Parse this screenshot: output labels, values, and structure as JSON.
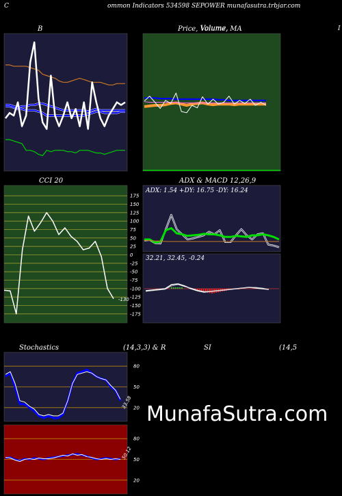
{
  "header": {
    "left_letter": "C",
    "text": "ommon  Indicators 534598  SEPOWER munafasutra.trbjar.com",
    "right_letter": "I"
  },
  "titles": {
    "b": "B",
    "price": "Price,  Volume,  MA",
    "price_overlap": "Volume,",
    "cci": "CCI 20",
    "adx_macd": "ADX  & MACD 12,26,9",
    "adx_values": "ADX: 1.54   +DY: 16.75 -DY: 16.24",
    "macd_values": "32.21,  32.45,  -0.24",
    "stochastics": "Stochastics",
    "stoch_params": "(14,3,3) & R",
    "si": "SI",
    "rsi_params": "(14,5"
  },
  "watermark": "MunafaSutra.com",
  "colors": {
    "navy_panel": "#1c1c3a",
    "green_panel": "#1f4a1f",
    "red_panel": "#8b0000",
    "green_line": "#00cc00",
    "blue_line": "#0000ff",
    "orange_line": "#cc7722",
    "grid_orange": "#b8860b",
    "grid_olive": "#9a9a30"
  },
  "chart_data": [
    {
      "type": "line",
      "name": "bollinger",
      "series": [
        {
          "values": [
            22,
            22,
            21,
            20,
            19,
            14,
            14,
            13,
            11,
            10,
            14,
            13,
            14,
            14,
            14,
            13,
            13,
            12,
            14,
            14,
            14,
            13,
            12,
            12,
            11,
            12,
            13,
            14,
            14,
            14
          ]
        },
        {
          "values": [
            47,
            47,
            46,
            45,
            45,
            44,
            44,
            44,
            43,
            42,
            40,
            40,
            40,
            40,
            40,
            40,
            40,
            40,
            40,
            40,
            41,
            42,
            43,
            43,
            42,
            42,
            42,
            42,
            43,
            43
          ]
        },
        {
          "values": [
            48,
            48,
            47,
            46,
            47,
            47,
            48,
            48,
            49,
            49,
            48,
            47,
            46,
            45,
            44,
            44,
            44,
            44,
            44,
            44,
            43,
            44,
            45,
            44,
            44,
            44,
            44,
            44,
            44,
            44
          ]
        },
        {
          "values": [
            53,
            53,
            53,
            53,
            53,
            52,
            52,
            52,
            52,
            51,
            51,
            50,
            49,
            49,
            48,
            48,
            48,
            48,
            48,
            47,
            48,
            48,
            48,
            48,
            47,
            47,
            47,
            47,
            47,
            48
          ]
        },
        {
          "values": [
            78,
            78,
            77,
            77,
            77,
            77,
            76,
            75,
            74,
            71,
            70,
            69,
            68,
            66,
            65,
            65,
            66,
            67,
            68,
            67,
            66,
            65,
            65,
            65,
            64,
            63,
            63,
            64,
            64,
            64
          ]
        },
        {
          "values": [
            62,
            58,
            60,
            50,
            68,
            60,
            20,
            5,
            47,
            65,
            70,
            30,
            60,
            68,
            60,
            50,
            62,
            55,
            68,
            50,
            70,
            35,
            50,
            62,
            68,
            60,
            55,
            50,
            52,
            50
          ]
        }
      ]
    },
    {
      "type": "line",
      "name": "price_ma",
      "series": [
        {
          "values": [
            38,
            39,
            40,
            40,
            41,
            43,
            44,
            42,
            40,
            42,
            43,
            44,
            42,
            41,
            42,
            42,
            42,
            41,
            42,
            42,
            42,
            42,
            42,
            42
          ]
        },
        {
          "values": [
            46,
            45,
            45,
            45,
            45,
            45,
            45,
            44,
            44,
            44,
            44,
            44,
            44,
            44,
            44,
            44,
            44,
            44,
            44,
            44,
            44,
            44,
            44,
            44
          ]
        },
        {
          "values": [
            52,
            52,
            52,
            51,
            51,
            51,
            50,
            50,
            50,
            50,
            50,
            50,
            50,
            50,
            49,
            49,
            48,
            48,
            48,
            48,
            48,
            48,
            48,
            48
          ]
        },
        {
          "values": [
            47,
            55,
            45,
            35,
            48,
            43,
            60,
            30,
            28,
            40,
            36,
            54,
            42,
            50,
            42,
            45,
            55,
            42,
            48,
            43,
            50,
            40,
            45,
            40
          ]
        }
      ]
    },
    {
      "type": "line",
      "name": "cci",
      "yticks": [
        175,
        150,
        125,
        100,
        75,
        50,
        25,
        0,
        -25,
        -50,
        -75,
        -100,
        -125,
        -150,
        -175
      ],
      "last_label": "-130",
      "values": [
        -105,
        -107,
        -175,
        15,
        115,
        70,
        95,
        125,
        100,
        60,
        80,
        55,
        40,
        15,
        20,
        40,
        -5,
        -100,
        -130
      ]
    },
    {
      "type": "line",
      "name": "adx",
      "series": [
        {
          "values": [
            20,
            20,
            14,
            16,
            38,
            42,
            32,
            30,
            27,
            28,
            29,
            31,
            30,
            30,
            28,
            25,
            25,
            27,
            26,
            25,
            28,
            28,
            30,
            28,
            25,
            20
          ]
        },
        {
          "values": [
            18,
            19,
            13,
            12,
            40,
            68,
            40,
            30,
            20,
            22,
            25,
            28,
            35,
            30,
            38,
            15,
            15,
            28,
            40,
            28,
            20,
            30,
            32,
            10,
            8,
            5
          ]
        },
        {
          "values": [
            38,
            38,
            36,
            35,
            42,
            46,
            44,
            42,
            40,
            38,
            38,
            36,
            35,
            34,
            34,
            33,
            32,
            33,
            32,
            31,
            30,
            29,
            28,
            27,
            27,
            26
          ]
        },
        {
          "values": [
            18,
            18,
            17,
            17,
            16,
            16,
            16,
            16,
            16,
            16,
            16,
            16,
            16,
            16,
            16,
            16,
            16,
            16,
            16,
            16,
            16,
            16,
            16,
            16,
            16,
            16
          ]
        }
      ]
    },
    {
      "type": "line",
      "name": "macd",
      "series": [
        {
          "values": [
            -5,
            -4,
            -3,
            -2,
            4,
            5,
            2,
            -2,
            -5,
            -7,
            -6,
            -5,
            -4,
            -3,
            -2,
            -1,
            0,
            -1,
            -2,
            -3
          ]
        },
        {
          "values": [
            -6,
            -5,
            -4,
            -3,
            2,
            4,
            1,
            -1,
            -4,
            -6,
            -6,
            -5,
            -4,
            -3,
            -2,
            -1,
            0,
            0,
            -1,
            -3
          ]
        }
      ]
    },
    {
      "type": "line",
      "name": "stochastics",
      "yticks": [
        80,
        50,
        20
      ],
      "last_label": "33.58",
      "series": [
        {
          "values": [
            65,
            70,
            50,
            25,
            25,
            20,
            15,
            8,
            5,
            8,
            5,
            5,
            10,
            30,
            55,
            70,
            72,
            75,
            70,
            65,
            62,
            60,
            50,
            45,
            30
          ]
        },
        {
          "values": [
            68,
            72,
            55,
            30,
            28,
            22,
            18,
            10,
            8,
            10,
            8,
            8,
            12,
            30,
            55,
            68,
            70,
            72,
            70,
            65,
            62,
            60,
            52,
            45,
            32
          ]
        }
      ]
    },
    {
      "type": "line",
      "name": "rsi",
      "yticks": [
        80,
        50,
        20
      ],
      "last_label": "50.12",
      "series": [
        {
          "values": [
            52,
            53,
            50,
            48,
            51,
            50,
            52,
            51,
            50,
            52,
            53,
            54,
            55,
            56,
            57,
            58,
            56,
            55,
            52,
            50,
            51,
            52,
            51,
            50,
            51
          ]
        },
        {
          "values": [
            53,
            52,
            49,
            47,
            50,
            51,
            50,
            52,
            51,
            51,
            52,
            54,
            56,
            55,
            58,
            56,
            57,
            54,
            53,
            51,
            50,
            51,
            50,
            51,
            50
          ]
        }
      ]
    }
  ]
}
